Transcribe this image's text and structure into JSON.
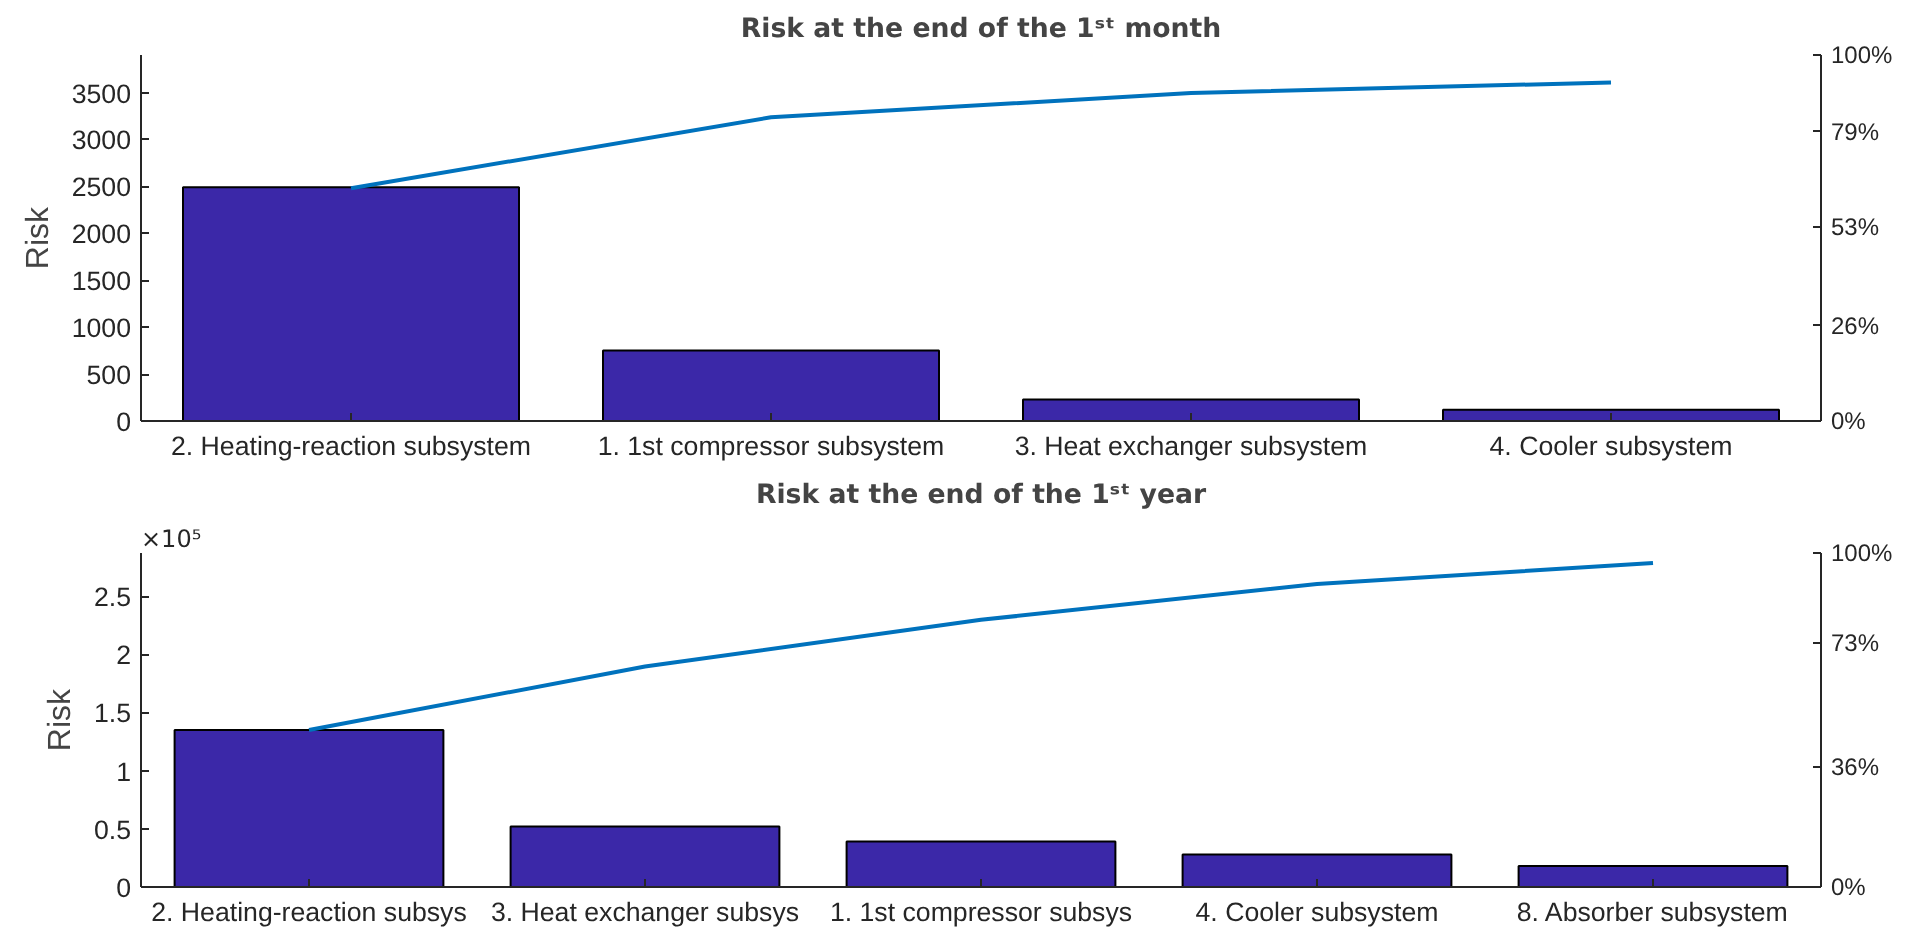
{
  "chart_data": [
    {
      "type": "bar",
      "title": "Risk at the end of the 1ˢᵗ month",
      "ylabel": "Risk",
      "categories": [
        "2. Heating-reaction subsystem",
        "1. 1st compressor subsystem",
        "3. Heat exchanger subsystem",
        "4. Cooler subsystem"
      ],
      "series": [
        {
          "color": "#3b28a8",
          "values": [
            2490,
            750,
            230,
            120
          ]
        },
        {
          "type": "line",
          "axis": "y2",
          "color": "#0072bd",
          "values": [
            63.6,
            83,
            89.6,
            92.5
          ]
        }
      ],
      "ylim": [
        0,
        3900
      ],
      "yticks": [
        0,
        500,
        1000,
        1500,
        2000,
        2500,
        3000,
        3500
      ],
      "y2lim": [
        0,
        100
      ],
      "y2ticks": [
        {
          "value": 0,
          "label": "0%"
        },
        {
          "value": 26,
          "label": "26%"
        },
        {
          "value": 53,
          "label": "53%"
        },
        {
          "value": 79,
          "label": "79%"
        },
        {
          "value": 100,
          "label": "100%"
        }
      ],
      "grid": false
    },
    {
      "type": "bar",
      "title": "Risk at the end of the 1ˢᵗ year",
      "ylabel": "Risk",
      "annotations": [
        "×10⁵"
      ],
      "categories": [
        "2. Heating-reaction subsys",
        "3. Heat exchanger subsys",
        "1. 1st compressor subsys",
        "4. Cooler subsystem",
        "8. Absorber subsystem"
      ],
      "series": [
        {
          "color": "#3b28a8",
          "values": [
            1.35,
            0.52,
            0.39,
            0.28,
            0.18
          ]
        },
        {
          "type": "line",
          "axis": "y2",
          "color": "#0072bd",
          "values": [
            47,
            66,
            80,
            90.7,
            97
          ]
        }
      ],
      "ylim": [
        0,
        2.87
      ],
      "yticks": [
        0,
        0.5,
        1,
        1.5,
        2,
        2.5
      ],
      "y2lim": [
        0,
        100
      ],
      "y2ticks": [
        {
          "value": 0,
          "label": "0%"
        },
        {
          "value": 36,
          "label": "36%"
        },
        {
          "value": 73,
          "label": "73%"
        },
        {
          "value": 100,
          "label": "100%"
        }
      ],
      "grid": false
    }
  ]
}
